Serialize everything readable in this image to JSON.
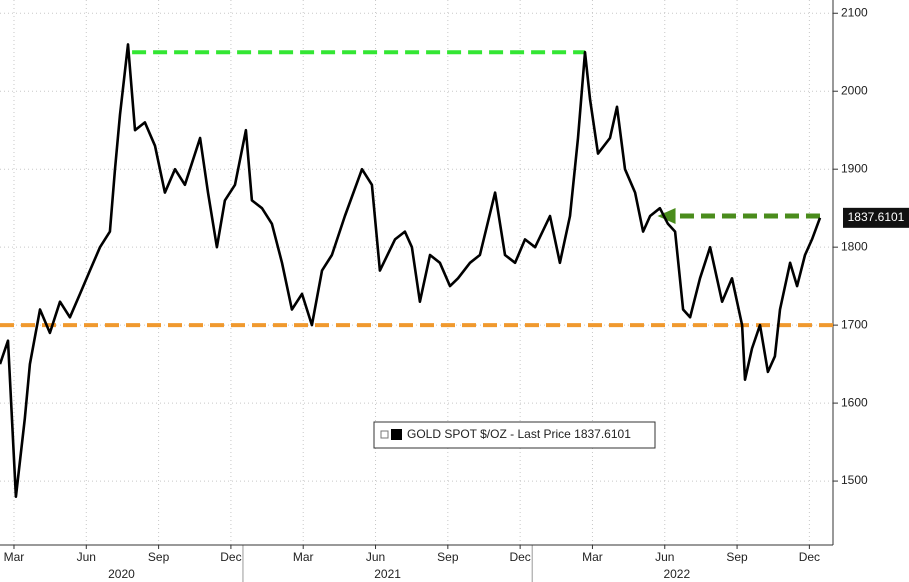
{
  "chart_data": {
    "type": "line",
    "x": [
      1.92,
      2.25,
      2.58,
      2.95,
      3.16,
      3.58,
      3.99,
      4.41,
      4.82,
      5.24,
      5.65,
      6.07,
      6.48,
      6.69,
      6.9,
      7.23,
      7.52,
      7.93,
      8.35,
      8.76,
      9.18,
      9.59,
      10.22,
      10.55,
      10.92,
      11.25,
      11.67,
      12.12,
      12.37,
      12.79,
      13.2,
      13.62,
      14.03,
      14.45,
      14.86,
      15.28,
      15.69,
      16.23,
      16.94,
      17.35,
      17.68,
      18.31,
      18.72,
      19.01,
      19.34,
      19.76,
      20.17,
      20.59,
      20.92,
      21.42,
      21.83,
      22.46,
      22.87,
      23.29,
      23.7,
      24.12,
      24.74,
      25.15,
      25.57,
      25.9,
      26.19,
      26.4,
      26.73,
      27.23,
      27.52,
      27.85,
      28.27,
      28.6,
      28.89,
      29.3,
      29.63,
      29.93,
      30.26,
      30.55,
      30.96,
      31.38,
      31.88,
      32.29,
      32.71,
      32.83,
      33.12,
      33.45,
      33.78,
      34.07,
      34.28,
      34.7,
      34.99,
      35.32,
      35.61,
      35.94
    ],
    "series": [
      {
        "name": "GOLD SPOT $/OZ - Last Price 1837.6101",
        "color": "#000000",
        "values": [
          1650,
          1680,
          1480,
          1580,
          1650,
          1720,
          1690,
          1730,
          1710,
          1740,
          1770,
          1800,
          1820,
          1900,
          1970,
          2060,
          1950,
          1960,
          1930,
          1870,
          1900,
          1880,
          1940,
          1870,
          1800,
          1860,
          1880,
          1950,
          1860,
          1850,
          1830,
          1780,
          1720,
          1740,
          1700,
          1770,
          1790,
          1840,
          1900,
          1880,
          1770,
          1810,
          1820,
          1800,
          1730,
          1790,
          1780,
          1750,
          1760,
          1780,
          1790,
          1870,
          1790,
          1780,
          1810,
          1800,
          1840,
          1780,
          1840,
          1940,
          2050,
          1990,
          1920,
          1940,
          1980,
          1900,
          1870,
          1820,
          1840,
          1850,
          1830,
          1820,
          1720,
          1710,
          1760,
          1800,
          1730,
          1760,
          1700,
          1630,
          1670,
          1700,
          1640,
          1660,
          1720,
          1780,
          1750,
          1790,
          1810,
          1837.6101
        ],
        "value_labels": [
          null,
          null,
          null,
          null,
          null,
          null,
          null,
          null,
          null,
          null,
          null,
          null,
          null,
          null,
          null,
          null,
          null,
          null,
          null,
          null,
          null,
          null,
          null,
          null,
          null,
          null,
          null,
          null,
          null,
          null,
          null,
          null,
          null,
          null,
          null,
          null,
          null,
          null,
          null,
          null,
          null,
          null,
          null,
          null,
          null,
          null,
          null,
          null,
          null,
          null,
          null,
          null,
          null,
          null,
          null,
          null,
          null,
          null,
          null,
          null,
          null,
          null,
          null,
          null,
          null,
          null,
          null,
          null,
          null,
          null,
          null,
          null,
          null,
          null,
          null,
          null,
          null,
          null,
          null,
          null,
          null,
          null,
          null,
          null,
          null,
          null,
          null,
          null,
          null,
          "1837.6101"
        ]
      }
    ],
    "xlim": [
      1.92,
      36.48
    ],
    "xticks": [
      {
        "value": 2.5,
        "label": "Mar"
      },
      {
        "value": 5.5,
        "label": "Jun"
      },
      {
        "value": 8.5,
        "label": "Sep"
      },
      {
        "value": 11.5,
        "label": "Dec"
      },
      {
        "value": 14.5,
        "label": "Mar"
      },
      {
        "value": 17.5,
        "label": "Jun"
      },
      {
        "value": 20.5,
        "label": "Sep"
      },
      {
        "value": 23.5,
        "label": "Dec"
      },
      {
        "value": 26.5,
        "label": "Mar"
      },
      {
        "value": 29.5,
        "label": "Jun"
      },
      {
        "value": 32.5,
        "label": "Sep"
      },
      {
        "value": 35.5,
        "label": "Dec"
      }
    ],
    "years": [
      {
        "value": 0,
        "label": "2020"
      },
      {
        "value": 12,
        "label": "2021"
      },
      {
        "value": 24,
        "label": "2022"
      }
    ],
    "ylim": [
      1418,
      2117
    ],
    "yticks": [
      1500,
      1600,
      1700,
      1800,
      1900,
      2000,
      2100
    ],
    "grid": true,
    "annotations": [
      {
        "kind": "hline",
        "y": 2050,
        "x": [
          7.4,
          26.2
        ],
        "color": "#33e633"
      },
      {
        "kind": "hline",
        "y": 1700,
        "x": [
          1.92,
          36.48
        ],
        "color": "#f0992e"
      },
      {
        "kind": "arrow",
        "y": 1840,
        "x": [
          35.94,
          29.2
        ],
        "color": "#4a8c1c"
      }
    ]
  }
}
